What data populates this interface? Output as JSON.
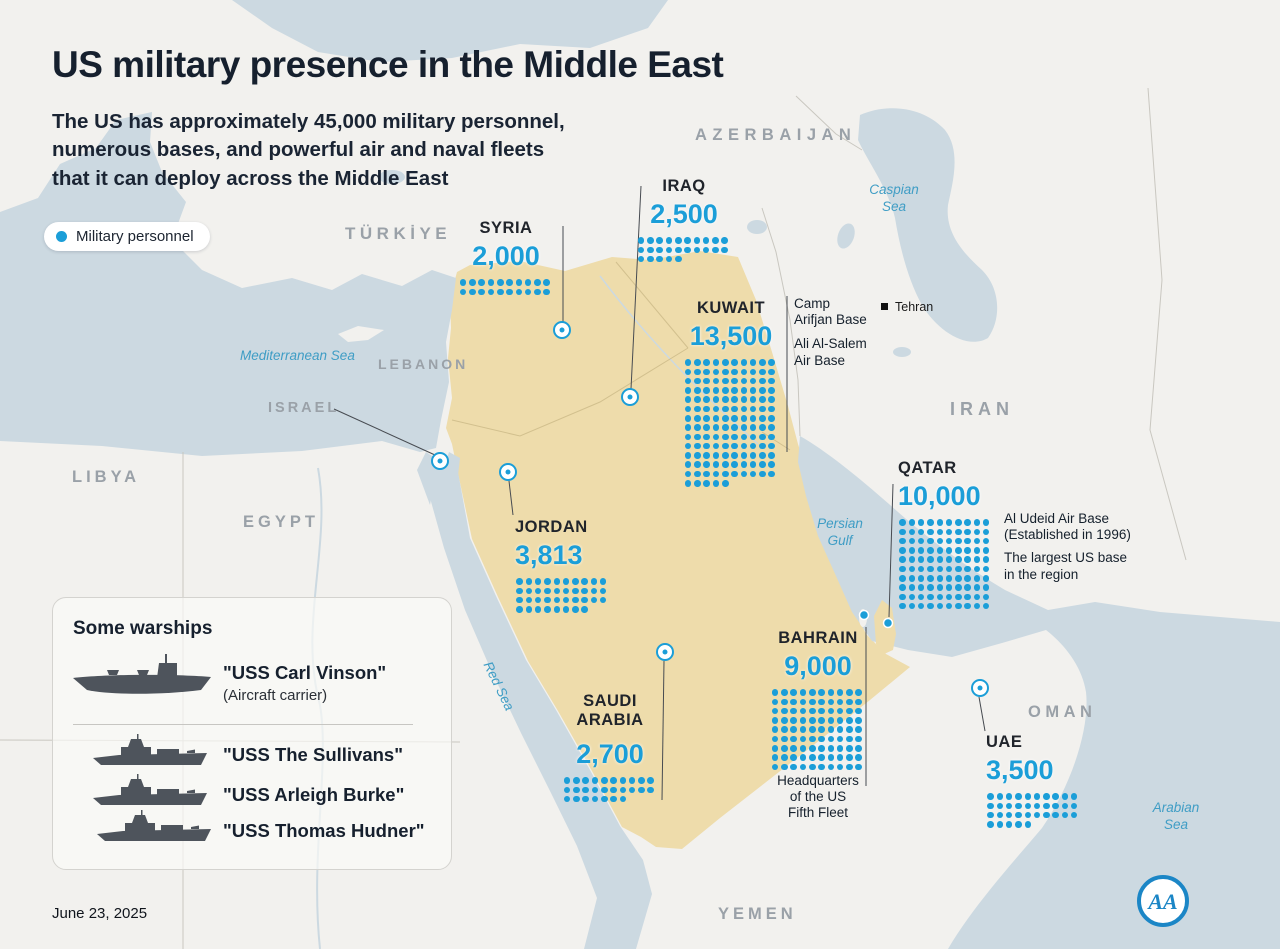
{
  "header": {
    "title": "US military presence in the Middle East",
    "subtitle": "The US has approximately 45,000 military personnel,\nnumerous bases, and powerful air and naval fleets\nthat it can deploy across the Middle East",
    "legend_label": "Military personnel"
  },
  "colors": {
    "accent_blue": "#1b9ed8",
    "land": "#f2f1ee",
    "highlight_land": "#eedcab",
    "sea": "#ccd9e1",
    "dark_text": "#1c2430",
    "muted_label": "#9aa1a8",
    "sea_label": "#3f9dc5",
    "ship_silhouette": "#4e545c"
  },
  "map_labels": {
    "countries": [
      {
        "name": "TÜRKİYE"
      },
      {
        "name": "AZERBAIJAN"
      },
      {
        "name": "LEBANON"
      },
      {
        "name": "ISRAEL"
      },
      {
        "name": "LIBYA"
      },
      {
        "name": "EGYPT"
      },
      {
        "name": "IRAN"
      },
      {
        "name": "OMAN"
      },
      {
        "name": "YEMEN"
      }
    ],
    "seas": [
      {
        "name": "Mediterranean Sea"
      },
      {
        "name": "Caspian\nSea"
      },
      {
        "name": "Persian\nGulf"
      },
      {
        "name": "Red Sea"
      },
      {
        "name": "Arabian\nSea"
      }
    ],
    "city": {
      "name": "Tehran"
    }
  },
  "deployments": [
    {
      "country": "SYRIA",
      "personnel": "2,000",
      "value": 2000,
      "unit_per_dot": 100
    },
    {
      "country": "IRAQ",
      "personnel": "2,500",
      "value": 2500,
      "unit_per_dot": 100
    },
    {
      "country": "KUWAIT",
      "personnel": "13,500",
      "value": 13500,
      "unit_per_dot": 100,
      "notes": [
        "Camp\nArifjan Base",
        "Ali Al-Salem\nAir Base"
      ]
    },
    {
      "country": "QATAR",
      "personnel": "10,000",
      "value": 10000,
      "unit_per_dot": 100,
      "notes": [
        "Al Udeid Air Base\n(Established in 1996)",
        "The largest US base\nin the region"
      ]
    },
    {
      "country": "JORDAN",
      "personnel": "3,813",
      "value": 3813,
      "unit_per_dot": 100
    },
    {
      "country": "BAHRAIN",
      "personnel": "9,000",
      "value": 9000,
      "unit_per_dot": 100,
      "notes": [
        "Headquarters\nof the US\nFifth Fleet"
      ]
    },
    {
      "country": "SAUDI\nARABIA",
      "personnel": "2,700",
      "value": 2700,
      "unit_per_dot": 100
    },
    {
      "country": "UAE",
      "personnel": "3,500",
      "value": 3500,
      "unit_per_dot": 100
    }
  ],
  "warships": {
    "title": "Some warships",
    "ships": [
      {
        "name": "\"USS Carl Vinson\"",
        "subtitle": "(Aircraft carrier)"
      },
      {
        "name": "\"USS The Sullivans\""
      },
      {
        "name": "\"USS Arleigh Burke\""
      },
      {
        "name": "\"USS Thomas Hudner\""
      }
    ]
  },
  "footer": {
    "date": "June 23, 2025",
    "agency": "AA"
  }
}
